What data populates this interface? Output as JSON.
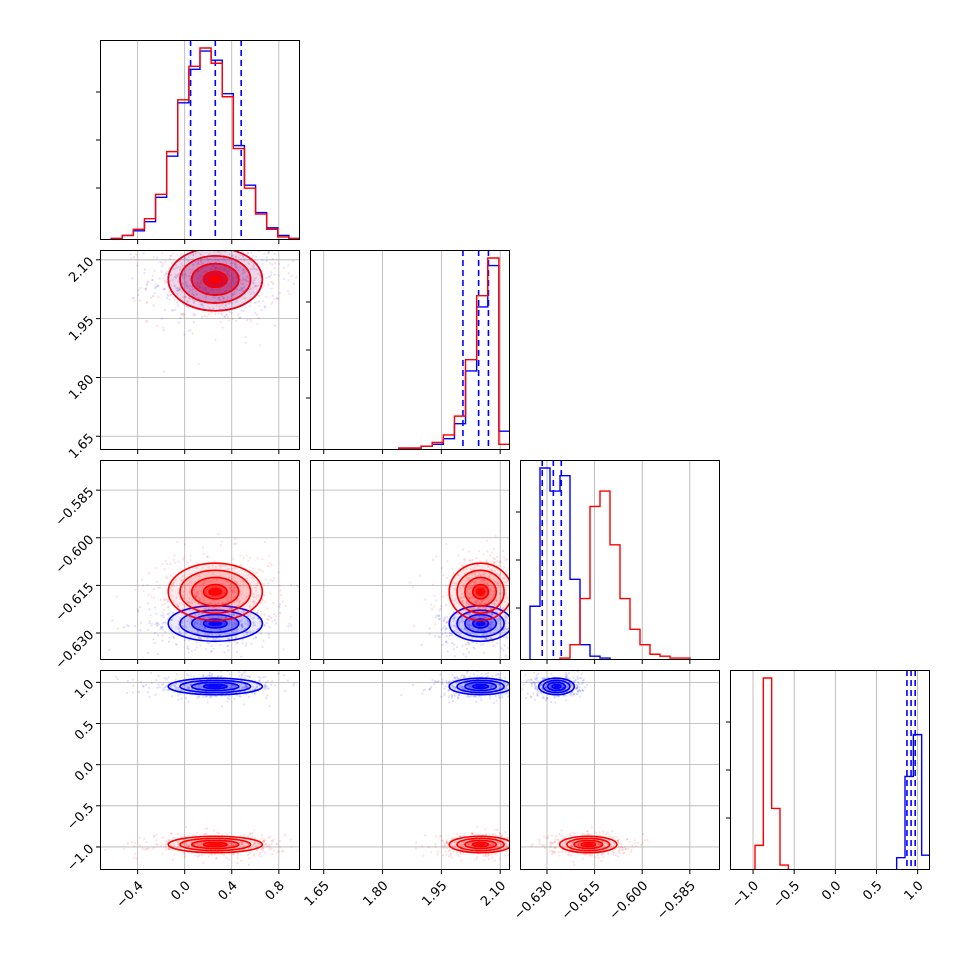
{
  "colors": {
    "series_a": "#0000ff",
    "series_b": "#ff0000",
    "grid": "#b0b0b0",
    "frame": "#000000"
  },
  "chart_data": {
    "type": "corner",
    "grid": true,
    "parameters": [
      {
        "range": [
          -0.72,
          0.98
        ],
        "ticks": [
          -0.4,
          0.0,
          0.4,
          0.8
        ],
        "tick_labels": [
          "−0.4",
          "0.0",
          "0.4",
          "0.8"
        ]
      },
      {
        "range": [
          1.615,
          2.125
        ],
        "ticks": [
          1.65,
          1.8,
          1.95,
          2.1
        ],
        "tick_labels": [
          "1.65",
          "1.80",
          "1.95",
          "2.10"
        ]
      },
      {
        "range": [
          -0.6385,
          -0.5755
        ],
        "ticks": [
          -0.63,
          -0.615,
          -0.6,
          -0.585
        ],
        "tick_labels": [
          "−0.630",
          "−0.615",
          "−0.600",
          "−0.585"
        ]
      },
      {
        "range": [
          -1.28,
          1.15
        ],
        "ticks": [
          -1.0,
          -0.5,
          0.0,
          0.5,
          1.0
        ],
        "tick_labels": [
          "−1.0",
          "−0.5",
          "0.0",
          "0.5",
          "1.0"
        ]
      }
    ],
    "series": [
      {
        "color": "#0000ff",
        "means": [
          0.26,
          2.05,
          -0.627,
          0.95
        ],
        "sds": [
          0.2,
          0.04,
          0.0028,
          0.05
        ],
        "quantiles": [
          [
            0.05,
            0.26,
            0.48
          ],
          [
            2.005,
            2.045,
            2.07
          ],
          [
            -0.6315,
            -0.628,
            -0.6255
          ],
          [
            0.87,
            0.92,
            0.97
          ]
        ],
        "hist": [
          {
            "edges_range": [
              -0.72,
              0.98
            ],
            "counts": [
              0,
              1,
              3,
              6,
              12,
              28,
              55,
              90,
              112,
              124,
              118,
              96,
              62,
              36,
              18,
              8,
              3,
              1
            ]
          },
          {
            "edges_range": [
              1.615,
              2.125
            ],
            "counts": [
              0,
              0,
              0,
              0,
              0,
              0,
              0,
              0,
              1,
              1,
              2,
              3,
              6,
              14,
              42,
              76,
              98,
              10
            ]
          },
          {
            "edges_range": [
              -0.6385,
              -0.5755
            ],
            "counts": [
              0,
              28,
              100,
              88,
              96,
              42,
              8,
              2,
              1,
              0,
              0,
              0,
              0,
              0,
              0,
              0,
              0,
              0,
              0,
              0
            ]
          },
          {
            "edges_range": [
              -1.28,
              1.15
            ],
            "counts": [
              0,
              0,
              0,
              0,
              0,
              0,
              0,
              0,
              0,
              0,
              0,
              0,
              0,
              0,
              0,
              0,
              0,
              0,
              0,
              0,
              5,
              38,
              55,
              6
            ]
          }
        ]
      },
      {
        "color": "#ff0000",
        "means": [
          0.26,
          2.05,
          -0.617,
          -0.97
        ],
        "sds": [
          0.2,
          0.04,
          0.0045,
          0.05
        ],
        "quantiles": [],
        "hist": [
          {
            "edges_range": [
              -0.72,
              0.98
            ],
            "counts": [
              0,
              1,
              3,
              7,
              14,
              30,
              58,
              92,
              114,
              126,
              116,
              94,
              60,
              34,
              17,
              7,
              2,
              1
            ]
          },
          {
            "edges_range": [
              1.615,
              2.125
            ],
            "counts": [
              0,
              0,
              0,
              0,
              0,
              0,
              0,
              0,
              1,
              1,
              2,
              4,
              8,
              18,
              48,
              82,
              102,
              3
            ]
          },
          {
            "edges_range": [
              -0.6385,
              -0.5755
            ],
            "counts": [
              0,
              0,
              0,
              0,
              1,
              8,
              32,
              80,
              88,
              60,
              32,
              16,
              8,
              3,
              2,
              1,
              1,
              0,
              0,
              0
            ]
          },
          {
            "edges_range": [
              -1.28,
              1.15
            ],
            "counts": [
              0,
              0,
              0,
              10,
              78,
              25,
              2,
              0,
              0,
              0,
              0,
              0,
              0,
              0,
              0,
              0,
              0,
              0,
              0,
              0,
              0,
              0,
              0,
              0
            ]
          }
        ]
      }
    ]
  }
}
